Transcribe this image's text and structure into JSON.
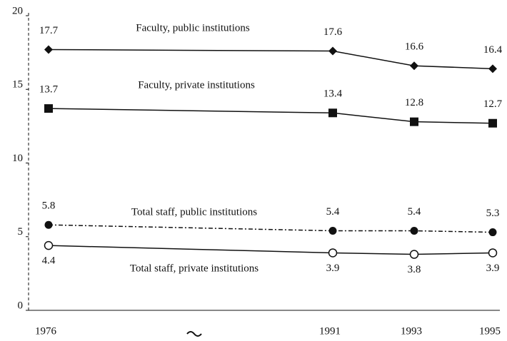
{
  "chart_data": {
    "type": "line",
    "categories": [
      "1976",
      "1991",
      "1993",
      "1995"
    ],
    "series": [
      {
        "name": "Faculty, public institutions",
        "color": "#111111",
        "marker": "diamond",
        "dash": "solid",
        "values": [
          17.7,
          17.6,
          16.6,
          16.4
        ]
      },
      {
        "name": "Faculty, private institutions",
        "color": "#111111",
        "marker": "square",
        "dash": "solid",
        "values": [
          13.7,
          13.4,
          12.8,
          12.7
        ]
      },
      {
        "name": "Total staff, public institutions",
        "color": "#111111",
        "marker": "filled-circle",
        "dash": "dash-dot",
        "values": [
          5.8,
          5.4,
          5.4,
          5.3
        ]
      },
      {
        "name": "Total staff, private institutions",
        "color": "#111111",
        "marker": "open-circle",
        "dash": "solid",
        "values": [
          4.4,
          3.9,
          3.8,
          3.9
        ]
      }
    ],
    "ylim": [
      0,
      20
    ],
    "yticks": [
      0,
      5,
      10,
      15,
      20
    ]
  }
}
